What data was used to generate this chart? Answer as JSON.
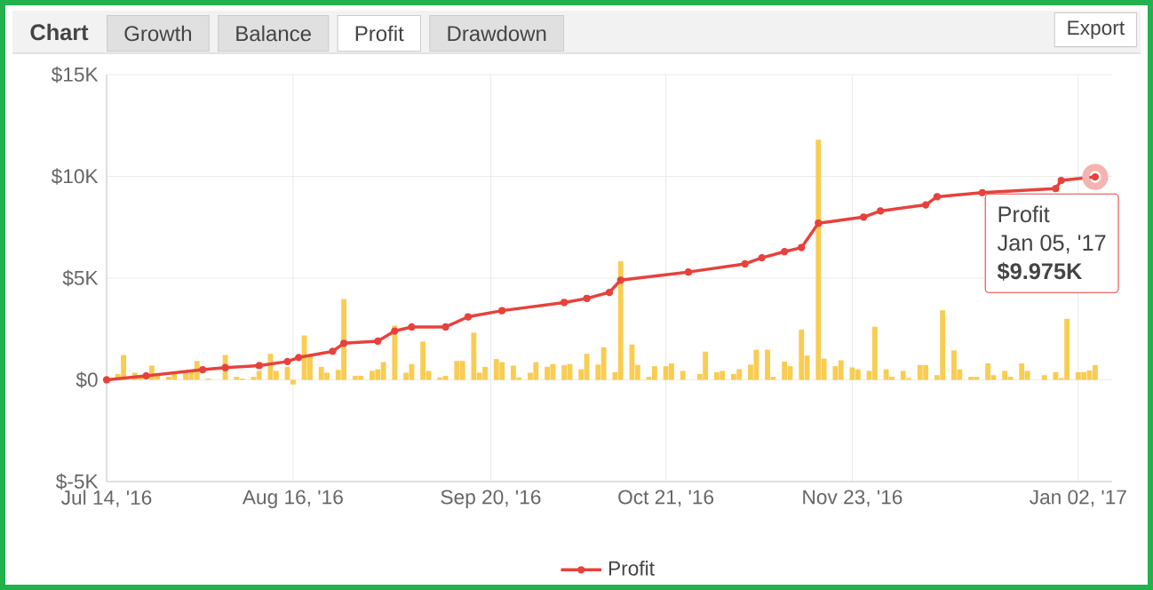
{
  "chart_data": {
    "type": "line",
    "title": "Chart",
    "annotations": [
      "Growth",
      "Balance",
      "Profit",
      "Drawdown",
      "Export",
      {
        "text": "Profit",
        "x": "2017-01-05",
        "y": 9975
      },
      "Jan 05, '17",
      "$9.975K"
    ],
    "xlim": [
      "2016-07-14",
      "2017-01-08"
    ],
    "xticks": [
      {
        "value": "2016-07-14",
        "label": "Jul 14, '16"
      },
      {
        "value": "2016-08-16",
        "label": "Aug 16, '16"
      },
      {
        "value": "2016-09-20",
        "label": "Sep 20, '16"
      },
      {
        "value": "2016-10-21",
        "label": "Oct 21, '16"
      },
      {
        "value": "2016-11-23",
        "label": "Nov 23, '16"
      },
      {
        "value": "2017-01-02",
        "label": "Jan 02, '17"
      }
    ],
    "ylim": [
      -5000,
      15000
    ],
    "yticks": [
      {
        "value": -5000,
        "label": "$-5K"
      },
      {
        "value": 0,
        "label": "$0"
      },
      {
        "value": 5000,
        "label": "$5K"
      },
      {
        "value": 10000,
        "label": "$10K"
      },
      {
        "value": 15000,
        "label": "$15K"
      }
    ],
    "grid": true,
    "legend": "bottom",
    "marker": "circle",
    "line_style": "solid",
    "series": [
      {
        "type": "bar",
        "color": "#f9cc52",
        "x": [
          "2016-07-16",
          "2016-07-17",
          "2016-07-19",
          "2016-07-20",
          "2016-07-22",
          "2016-07-23",
          "2016-07-25",
          "2016-07-26",
          "2016-07-28",
          "2016-07-29",
          "2016-07-30",
          "2016-08-01",
          "2016-08-04",
          "2016-08-06",
          "2016-08-07",
          "2016-08-09",
          "2016-08-10",
          "2016-08-12",
          "2016-08-13",
          "2016-08-15",
          "2016-08-16",
          "2016-08-18",
          "2016-08-19",
          "2016-08-21",
          "2016-08-22",
          "2016-08-24",
          "2016-08-25",
          "2016-08-27",
          "2016-08-28",
          "2016-08-30",
          "2016-08-31",
          "2016-09-01",
          "2016-09-03",
          "2016-09-05",
          "2016-09-06",
          "2016-09-08",
          "2016-09-09",
          "2016-09-11",
          "2016-09-12",
          "2016-09-14",
          "2016-09-15",
          "2016-09-17",
          "2016-09-18",
          "2016-09-19",
          "2016-09-21",
          "2016-09-22",
          "2016-09-24",
          "2016-09-25",
          "2016-09-27",
          "2016-09-28",
          "2016-09-30",
          "2016-10-01",
          "2016-10-03",
          "2016-10-04",
          "2016-10-06",
          "2016-10-07",
          "2016-10-09",
          "2016-10-10",
          "2016-10-12",
          "2016-10-13",
          "2016-10-15",
          "2016-10-16",
          "2016-10-18",
          "2016-10-19",
          "2016-10-21",
          "2016-10-22",
          "2016-10-24",
          "2016-10-27",
          "2016-10-28",
          "2016-10-30",
          "2016-10-31",
          "2016-11-02",
          "2016-11-03",
          "2016-11-05",
          "2016-11-06",
          "2016-11-08",
          "2016-11-09",
          "2016-11-11",
          "2016-11-12",
          "2016-11-14",
          "2016-11-15",
          "2016-11-17",
          "2016-11-18",
          "2016-11-20",
          "2016-11-21",
          "2016-11-23",
          "2016-11-24",
          "2016-11-26",
          "2016-11-27",
          "2016-11-29",
          "2016-11-30",
          "2016-12-02",
          "2016-12-03",
          "2016-12-05",
          "2016-12-06",
          "2016-12-08",
          "2016-12-09",
          "2016-12-11",
          "2016-12-12",
          "2016-12-14",
          "2016-12-15",
          "2016-12-17",
          "2016-12-18",
          "2016-12-20",
          "2016-12-21",
          "2016-12-23",
          "2016-12-24",
          "2016-12-27",
          "2016-12-29",
          "2016-12-30",
          "2016-12-31",
          "2017-01-02",
          "2017-01-03",
          "2017-01-04",
          "2017-01-05"
        ],
        "values": [
          290,
          1220,
          350,
          200,
          700,
          200,
          150,
          350,
          440,
          440,
          930,
          60,
          1220,
          150,
          60,
          150,
          440,
          1280,
          440,
          640,
          -230,
          2180,
          1220,
          640,
          350,
          490,
          3970,
          200,
          200,
          440,
          520,
          870,
          2670,
          350,
          780,
          1880,
          440,
          120,
          200,
          930,
          930,
          2320,
          350,
          640,
          1020,
          870,
          700,
          120,
          350,
          870,
          640,
          780,
          720,
          780,
          520,
          1280,
          750,
          1600,
          380,
          5830,
          1740,
          730,
          150,
          670,
          670,
          810,
          440,
          290,
          1390,
          380,
          440,
          290,
          520,
          750,
          1480,
          1480,
          150,
          900,
          670,
          2470,
          1190,
          11800,
          1040,
          670,
          960,
          610,
          520,
          440,
          2610,
          520,
          150,
          440,
          90,
          730,
          730,
          230,
          3420,
          1450,
          520,
          150,
          150,
          810,
          230,
          440,
          150,
          810,
          440,
          230,
          380,
          90,
          3000,
          380,
          380,
          460,
          730
        ]
      },
      {
        "name": "Profit",
        "color": "#e8413c",
        "x": [
          "2016-07-14",
          "2016-07-21",
          "2016-07-31",
          "2016-08-04",
          "2016-08-10",
          "2016-08-15",
          "2016-08-17",
          "2016-08-23",
          "2016-08-25",
          "2016-08-31",
          "2016-09-03",
          "2016-09-06",
          "2016-09-12",
          "2016-09-16",
          "2016-09-22",
          "2016-10-03",
          "2016-10-07",
          "2016-10-11",
          "2016-10-13",
          "2016-10-25",
          "2016-11-04",
          "2016-11-07",
          "2016-11-11",
          "2016-11-14",
          "2016-11-17",
          "2016-11-25",
          "2016-11-28",
          "2016-12-06",
          "2016-12-08",
          "2016-12-16",
          "2016-12-29",
          "2016-12-30",
          "2017-01-05"
        ],
        "values": [
          0,
          200,
          500,
          600,
          700,
          900,
          1100,
          1400,
          1800,
          1900,
          2400,
          2600,
          2600,
          3100,
          3400,
          3800,
          4000,
          4300,
          4900,
          5300,
          5700,
          6000,
          6300,
          6500,
          7700,
          8000,
          8300,
          8600,
          9000,
          9200,
          9400,
          9800,
          9975
        ]
      }
    ]
  }
}
